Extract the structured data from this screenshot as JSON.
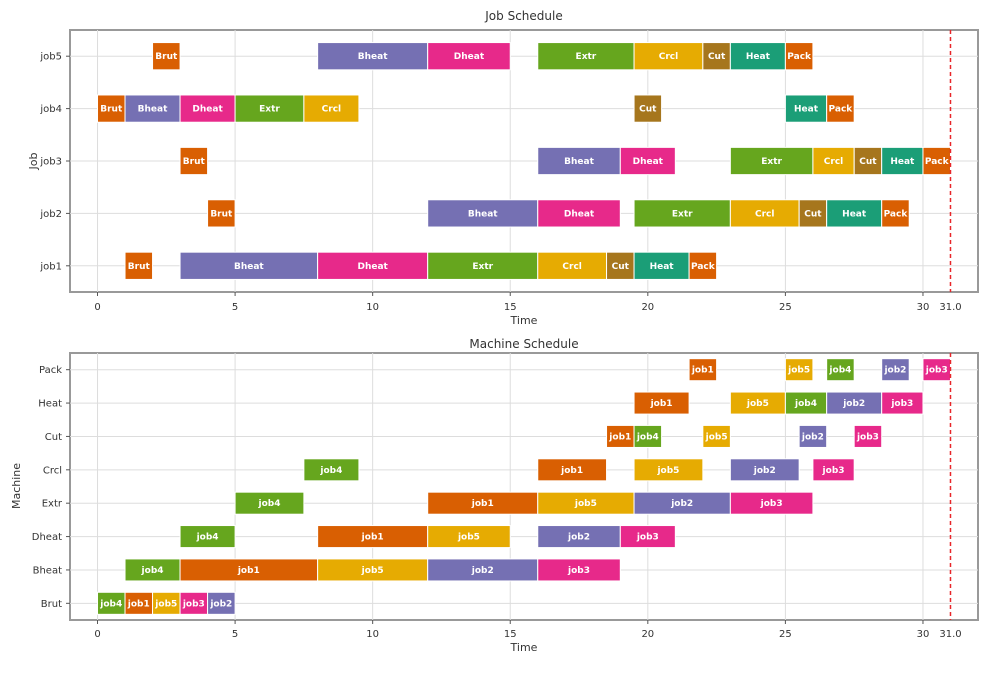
{
  "colors": {
    "Brut": "#d95f02",
    "Bheat": "#7570b3",
    "Dheat": "#e7298a",
    "Extr": "#66a61e",
    "Crcl": "#e6ab02",
    "Cut": "#a6761d",
    "Heat": "#1b9e77",
    "Pack": "#d95f02",
    "job1": "#d95f02",
    "job2": "#7570b3",
    "job3": "#e7298a",
    "job4": "#66a61e",
    "job5": "#e6ab02",
    "marker": "#e8262a"
  },
  "chart_data": [
    {
      "type": "gantt",
      "title": "Job Schedule",
      "xlabel": "Time",
      "ylabel": "Job",
      "xlim": [
        -1,
        32
      ],
      "xticks": [
        0,
        5,
        10,
        15,
        20,
        25,
        30
      ],
      "marker": {
        "value": 31.0,
        "label": "31.0"
      },
      "rows": [
        "job1",
        "job2",
        "job3",
        "job4",
        "job5"
      ],
      "tasks": [
        {
          "row": "job1",
          "label": "Brut",
          "start": 1,
          "end": 2
        },
        {
          "row": "job1",
          "label": "Bheat",
          "start": 3,
          "end": 8
        },
        {
          "row": "job1",
          "label": "Dheat",
          "start": 8,
          "end": 12
        },
        {
          "row": "job1",
          "label": "Extr",
          "start": 12,
          "end": 16
        },
        {
          "row": "job1",
          "label": "Crcl",
          "start": 16,
          "end": 18.5
        },
        {
          "row": "job1",
          "label": "Cut",
          "start": 18.5,
          "end": 19.5
        },
        {
          "row": "job1",
          "label": "Heat",
          "start": 19.5,
          "end": 21.5
        },
        {
          "row": "job1",
          "label": "Pack",
          "start": 21.5,
          "end": 22.5
        },
        {
          "row": "job2",
          "label": "Brut",
          "start": 4,
          "end": 5
        },
        {
          "row": "job2",
          "label": "Bheat",
          "start": 12,
          "end": 16
        },
        {
          "row": "job2",
          "label": "Dheat",
          "start": 16,
          "end": 19
        },
        {
          "row": "job2",
          "label": "Extr",
          "start": 19.5,
          "end": 23
        },
        {
          "row": "job2",
          "label": "Crcl",
          "start": 23,
          "end": 25.5
        },
        {
          "row": "job2",
          "label": "Cut",
          "start": 25.5,
          "end": 26.5
        },
        {
          "row": "job2",
          "label": "Heat",
          "start": 26.5,
          "end": 28.5
        },
        {
          "row": "job2",
          "label": "Pack",
          "start": 28.5,
          "end": 29.5
        },
        {
          "row": "job3",
          "label": "Brut",
          "start": 3,
          "end": 4
        },
        {
          "row": "job3",
          "label": "Bheat",
          "start": 16,
          "end": 19
        },
        {
          "row": "job3",
          "label": "Dheat",
          "start": 19,
          "end": 21
        },
        {
          "row": "job3",
          "label": "Extr",
          "start": 23,
          "end": 26
        },
        {
          "row": "job3",
          "label": "Crcl",
          "start": 26,
          "end": 27.5
        },
        {
          "row": "job3",
          "label": "Cut",
          "start": 27.5,
          "end": 28.5
        },
        {
          "row": "job3",
          "label": "Heat",
          "start": 28.5,
          "end": 30
        },
        {
          "row": "job3",
          "label": "Pack",
          "start": 30,
          "end": 31
        },
        {
          "row": "job4",
          "label": "Brut",
          "start": 0,
          "end": 1
        },
        {
          "row": "job4",
          "label": "Bheat",
          "start": 1,
          "end": 3
        },
        {
          "row": "job4",
          "label": "Dheat",
          "start": 3,
          "end": 5
        },
        {
          "row": "job4",
          "label": "Extr",
          "start": 5,
          "end": 7.5
        },
        {
          "row": "job4",
          "label": "Crcl",
          "start": 7.5,
          "end": 9.5
        },
        {
          "row": "job4",
          "label": "Cut",
          "start": 19.5,
          "end": 20.5
        },
        {
          "row": "job4",
          "label": "Heat",
          "start": 25,
          "end": 26.5
        },
        {
          "row": "job4",
          "label": "Pack",
          "start": 26.5,
          "end": 27.5
        },
        {
          "row": "job5",
          "label": "Brut",
          "start": 2,
          "end": 3
        },
        {
          "row": "job5",
          "label": "Bheat",
          "start": 8,
          "end": 12
        },
        {
          "row": "job5",
          "label": "Dheat",
          "start": 12,
          "end": 15
        },
        {
          "row": "job5",
          "label": "Extr",
          "start": 16,
          "end": 19.5
        },
        {
          "row": "job5",
          "label": "Crcl",
          "start": 19.5,
          "end": 22
        },
        {
          "row": "job5",
          "label": "Cut",
          "start": 22,
          "end": 23
        },
        {
          "row": "job5",
          "label": "Heat",
          "start": 23,
          "end": 25
        },
        {
          "row": "job5",
          "label": "Pack",
          "start": 25,
          "end": 26
        }
      ]
    },
    {
      "type": "gantt",
      "title": "Machine Schedule",
      "xlabel": "Time",
      "ylabel": "Machine",
      "xlim": [
        -1,
        32
      ],
      "xticks": [
        0,
        5,
        10,
        15,
        20,
        25,
        30
      ],
      "marker": {
        "value": 31.0,
        "label": "31.0"
      },
      "rows": [
        "Brut",
        "Bheat",
        "Dheat",
        "Extr",
        "Crcl",
        "Cut",
        "Heat",
        "Pack"
      ],
      "tasks": [
        {
          "row": "Brut",
          "label": "job4",
          "start": 0,
          "end": 1
        },
        {
          "row": "Brut",
          "label": "job1",
          "start": 1,
          "end": 2
        },
        {
          "row": "Brut",
          "label": "job5",
          "start": 2,
          "end": 3
        },
        {
          "row": "Brut",
          "label": "job3",
          "start": 3,
          "end": 4
        },
        {
          "row": "Brut",
          "label": "job2",
          "start": 4,
          "end": 5
        },
        {
          "row": "Bheat",
          "label": "job4",
          "start": 1,
          "end": 3
        },
        {
          "row": "Bheat",
          "label": "job1",
          "start": 3,
          "end": 8
        },
        {
          "row": "Bheat",
          "label": "job5",
          "start": 8,
          "end": 12
        },
        {
          "row": "Bheat",
          "label": "job2",
          "start": 12,
          "end": 16
        },
        {
          "row": "Bheat",
          "label": "job3",
          "start": 16,
          "end": 19
        },
        {
          "row": "Dheat",
          "label": "job4",
          "start": 3,
          "end": 5
        },
        {
          "row": "Dheat",
          "label": "job1",
          "start": 8,
          "end": 12
        },
        {
          "row": "Dheat",
          "label": "job5",
          "start": 12,
          "end": 15
        },
        {
          "row": "Dheat",
          "label": "job2",
          "start": 16,
          "end": 19
        },
        {
          "row": "Dheat",
          "label": "job3",
          "start": 19,
          "end": 21
        },
        {
          "row": "Extr",
          "label": "job4",
          "start": 5,
          "end": 7.5
        },
        {
          "row": "Extr",
          "label": "job1",
          "start": 12,
          "end": 16
        },
        {
          "row": "Extr",
          "label": "job5",
          "start": 16,
          "end": 19.5
        },
        {
          "row": "Extr",
          "label": "job2",
          "start": 19.5,
          "end": 23
        },
        {
          "row": "Extr",
          "label": "job3",
          "start": 23,
          "end": 26
        },
        {
          "row": "Crcl",
          "label": "job4",
          "start": 7.5,
          "end": 9.5
        },
        {
          "row": "Crcl",
          "label": "job1",
          "start": 16,
          "end": 18.5
        },
        {
          "row": "Crcl",
          "label": "job5",
          "start": 19.5,
          "end": 22
        },
        {
          "row": "Crcl",
          "label": "job2",
          "start": 23,
          "end": 25.5
        },
        {
          "row": "Crcl",
          "label": "job3",
          "start": 26,
          "end": 27.5
        },
        {
          "row": "Cut",
          "label": "job1",
          "start": 18.5,
          "end": 19.5
        },
        {
          "row": "Cut",
          "label": "job4",
          "start": 19.5,
          "end": 20.5
        },
        {
          "row": "Cut",
          "label": "job5",
          "start": 22,
          "end": 23
        },
        {
          "row": "Cut",
          "label": "job2",
          "start": 25.5,
          "end": 26.5
        },
        {
          "row": "Cut",
          "label": "job3",
          "start": 27.5,
          "end": 28.5
        },
        {
          "row": "Heat",
          "label": "job1",
          "start": 19.5,
          "end": 21.5
        },
        {
          "row": "Heat",
          "label": "job5",
          "start": 23,
          "end": 25
        },
        {
          "row": "Heat",
          "label": "job4",
          "start": 25,
          "end": 26.5
        },
        {
          "row": "Heat",
          "label": "job2",
          "start": 26.5,
          "end": 28.5
        },
        {
          "row": "Heat",
          "label": "job3",
          "start": 28.5,
          "end": 30
        },
        {
          "row": "Pack",
          "label": "job1",
          "start": 21.5,
          "end": 22.5
        },
        {
          "row": "Pack",
          "label": "job5",
          "start": 25,
          "end": 26
        },
        {
          "row": "Pack",
          "label": "job4",
          "start": 26.5,
          "end": 27.5
        },
        {
          "row": "Pack",
          "label": "job2",
          "start": 28.5,
          "end": 29.5
        },
        {
          "row": "Pack",
          "label": "job3",
          "start": 30,
          "end": 31
        }
      ]
    }
  ]
}
